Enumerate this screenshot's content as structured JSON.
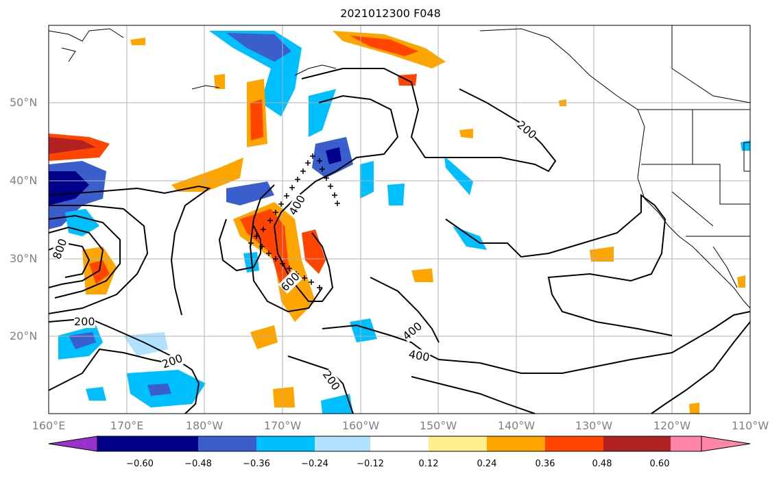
{
  "title": "2021012300 F048",
  "lat_labels": [
    "50°N",
    "40°N",
    "30°N",
    "20°N"
  ],
  "lon_labels": [
    "160°E",
    "170°E",
    "180°W",
    "170°W",
    "160°W",
    "150°W",
    "140°W",
    "130°W",
    "120°W",
    "110°W"
  ],
  "contour_labels": [
    "200",
    "200",
    "200",
    "200",
    "400",
    "400",
    "400",
    "600",
    "800"
  ],
  "colorbar": {
    "ticks": [
      "−0.60",
      "−0.48",
      "−0.36",
      "−0.24",
      "−0.12",
      "0.12",
      "0.24",
      "0.36",
      "0.48",
      "0.60"
    ],
    "colors": [
      "#9932cc",
      "#00008b",
      "#3a5fcd",
      "#00bfff",
      "#b0e2ff",
      "#ffffff",
      "#fff08c",
      "#ffa500",
      "#ff4500",
      "#b22222",
      "#ff86a8"
    ]
  }
}
